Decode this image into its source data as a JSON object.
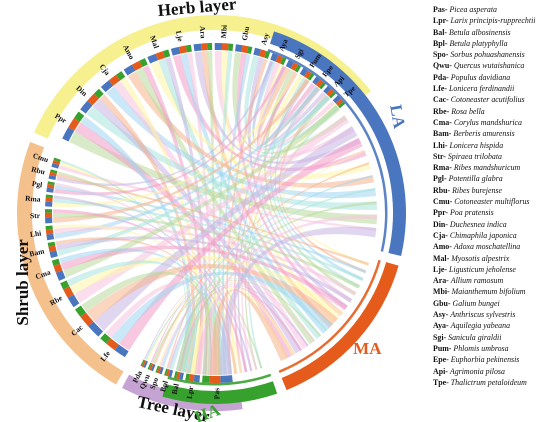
{
  "chart_data": {
    "type": "chord",
    "groups": [
      {
        "name": "Herb layer",
        "color": "#f6f08e"
      },
      {
        "name": "Shrub layer",
        "color": "#f4c08c"
      },
      {
        "name": "Tree layer",
        "color": "#c5a3d2"
      },
      {
        "name": "LA",
        "color": "#4a75bf"
      },
      {
        "name": "MA",
        "color": "#e55b1c"
      },
      {
        "name": "HA",
        "color": "#37a12e"
      }
    ],
    "species_order": [
      "Tpe",
      "Api",
      "Epe",
      "Pum",
      "Sgi",
      "Aya",
      "Asy",
      "Gbu",
      "Mbi",
      "Ara",
      "Lje",
      "Mal",
      "Amo",
      "Cja",
      "Din",
      "Ppr",
      "Cmu",
      "Rbu",
      "Pgl",
      "Rma",
      "Str",
      "Lhi",
      "Bam",
      "Cma",
      "Rbe",
      "Cac",
      "Lfe",
      "Pda",
      "Qwu",
      "Spo",
      "Bpl",
      "Bal",
      "Lpr",
      "Pas"
    ]
  },
  "legend": [
    {
      "abbr": "Pas",
      "name": "Picea asperata"
    },
    {
      "abbr": "Lpr",
      "name": "Larix principis-rupprechtii"
    },
    {
      "abbr": "Bal",
      "name": "Betula albosinensis"
    },
    {
      "abbr": "Bpl",
      "name": "Betula platyphylla"
    },
    {
      "abbr": "Spo",
      "name": "Sorbus pohuashanensis"
    },
    {
      "abbr": "Qwu",
      "name": "Quercus wutaishanica"
    },
    {
      "abbr": "Pda",
      "name": "Populus davidiana"
    },
    {
      "abbr": "Lfe",
      "name": "Lonicera ferdinandii"
    },
    {
      "abbr": "Cac",
      "name": "Cotoneaster acutifolius"
    },
    {
      "abbr": "Rbe",
      "name": "Rosa bella"
    },
    {
      "abbr": "Cma",
      "name": "Corylus mandshurica"
    },
    {
      "abbr": "Bam",
      "name": "Berberis amurensis"
    },
    {
      "abbr": "Lhi",
      "name": "Lonicera hispida"
    },
    {
      "abbr": "Str",
      "name": "Spiraea trilobata"
    },
    {
      "abbr": "Rma",
      "name": "Ribes mandshuricum"
    },
    {
      "abbr": "Pgl",
      "name": "Potentilla glabra"
    },
    {
      "abbr": "Rbu",
      "name": "Ribes burejense"
    },
    {
      "abbr": "Cmu",
      "name": "Cotoneaster multiflorus"
    },
    {
      "abbr": "Ppr",
      "name": "Poa pratensis"
    },
    {
      "abbr": "Din",
      "name": "Duchesnea indica"
    },
    {
      "abbr": "Cja",
      "name": "Chimaphila japonica"
    },
    {
      "abbr": "Amo",
      "name": "Adoxa moschatellina"
    },
    {
      "abbr": "Mal",
      "name": "Myosotis alpestrix"
    },
    {
      "abbr": "Lje",
      "name": "Ligusticum jeholense"
    },
    {
      "abbr": "Ara",
      "name": "Allium ramosum"
    },
    {
      "abbr": "Mbi",
      "name": "Maianthemum bifolium"
    },
    {
      "abbr": "Gbu",
      "name": "Galium bungei"
    },
    {
      "abbr": "Asy",
      "name": "Anthriscus sylvestris"
    },
    {
      "abbr": "Aya",
      "name": "Aquilegia yabeana"
    },
    {
      "abbr": "Sgi",
      "name": "Sanicula giraldii"
    },
    {
      "abbr": "Pum",
      "name": "Phlomis umbrosa"
    },
    {
      "abbr": "Epe",
      "name": "Euphorbia pekinensis"
    },
    {
      "abbr": "Api",
      "name": "Agrimonia pilosa"
    },
    {
      "abbr": "Tpe",
      "name": "Thalictrum petaloideum"
    }
  ]
}
